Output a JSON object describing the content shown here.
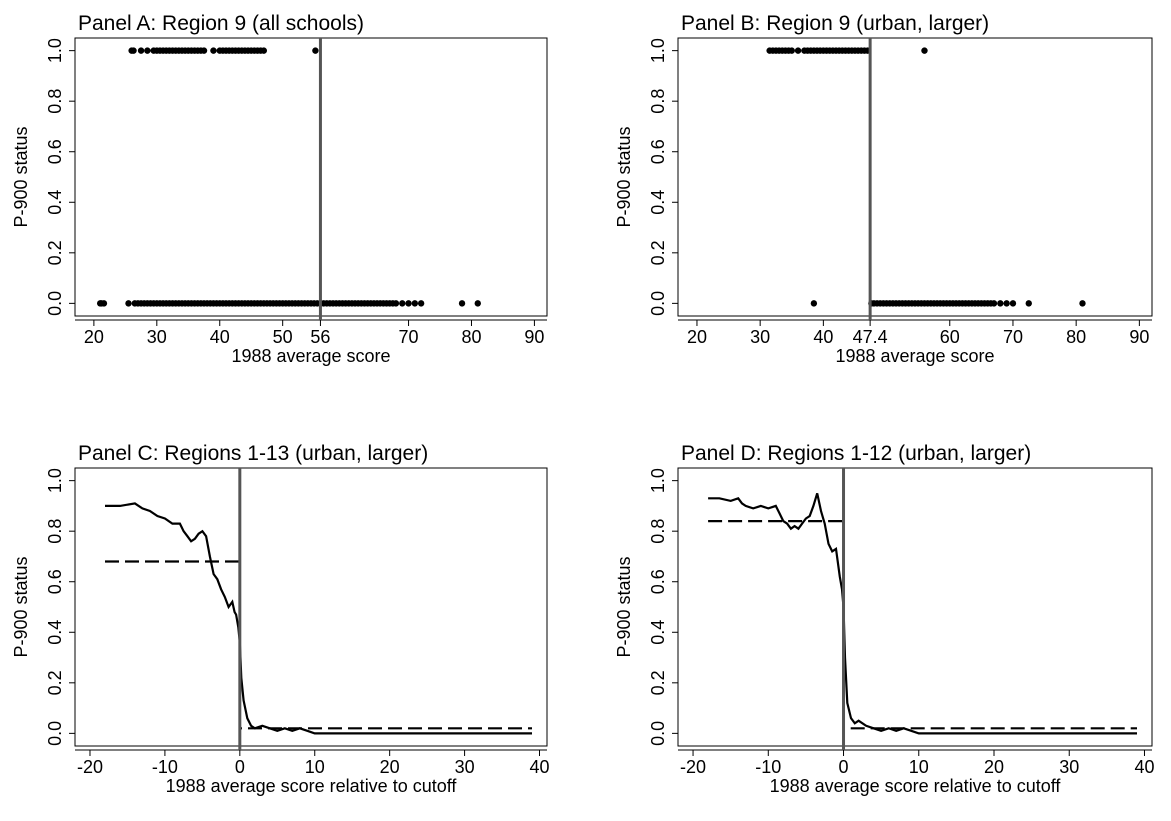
{
  "chart_data": [
    {
      "type": "scatter",
      "title": "Panel A: Region 9 (all schools)",
      "xlabel": "1988 average score",
      "ylabel": "P-900 status",
      "xlim": [
        17,
        92
      ],
      "ylim": [
        -0.05,
        1.05
      ],
      "x_ticks": [
        20,
        30,
        40,
        50,
        56,
        70,
        80,
        90
      ],
      "x_tick_labels": [
        "20",
        "30",
        "40",
        "50",
        "56",
        "70",
        "80",
        "90"
      ],
      "y_ticks": [
        0,
        0.2,
        0.4,
        0.6,
        0.8,
        1
      ],
      "y_tick_labels": [
        "0.0",
        "0.2",
        "0.4",
        "0.6",
        "0.8",
        "1.0"
      ],
      "cutoff": 56,
      "series": [
        {
          "points_y1_x": [
            26,
            26.3,
            27.5,
            28.5,
            29.5,
            30,
            30.5,
            31,
            31.5,
            32,
            32.5,
            33,
            33.5,
            34,
            34.5,
            35,
            35.5,
            36,
            36.5,
            37,
            37.5,
            39,
            40,
            40.5,
            41,
            41.5,
            42,
            42.5,
            43,
            43.5,
            44,
            44.5,
            45,
            45.5,
            46,
            46.5,
            47,
            55.2
          ],
          "points_y0_x": [
            21,
            21.2,
            21.6,
            25.5,
            26.5,
            27,
            27.5,
            28,
            28.5,
            29,
            29.5,
            30,
            30.5,
            31,
            31.5,
            32,
            32.5,
            33,
            33.5,
            34,
            34.5,
            35,
            35.5,
            36,
            36.5,
            37,
            37.5,
            38,
            38.5,
            39,
            39.5,
            40,
            40.5,
            41,
            41.5,
            42,
            42.5,
            43,
            43.5,
            44,
            44.5,
            45,
            45.5,
            46,
            46.5,
            47,
            47.5,
            48,
            48.5,
            49,
            49.5,
            50,
            50.5,
            51,
            51.5,
            52,
            52.5,
            53,
            53.5,
            54,
            54.5,
            55,
            55.5,
            56,
            56.5,
            57,
            57.5,
            58,
            58.5,
            59,
            59.5,
            60,
            60.5,
            61,
            61.5,
            62,
            62.5,
            63,
            63.5,
            64,
            64.5,
            65,
            65.5,
            66,
            66.5,
            67,
            67.5,
            68,
            69,
            70,
            71,
            72,
            78.5,
            81
          ]
        }
      ]
    },
    {
      "type": "scatter",
      "title": "Panel B: Region 9 (urban, larger)",
      "xlabel": "1988 average score",
      "ylabel": "P-900 status",
      "xlim": [
        17,
        92
      ],
      "ylim": [
        -0.05,
        1.05
      ],
      "x_ticks": [
        20,
        30,
        40,
        47.4,
        60,
        70,
        80,
        90
      ],
      "x_tick_labels": [
        "20",
        "30",
        "40",
        "47.4",
        "60",
        "70",
        "80",
        "90"
      ],
      "y_ticks": [
        0,
        0.2,
        0.4,
        0.6,
        0.8,
        1
      ],
      "y_tick_labels": [
        "0.0",
        "0.2",
        "0.4",
        "0.6",
        "0.8",
        "1.0"
      ],
      "cutoff": 47.4,
      "series": [
        {
          "points_y1_x": [
            31.5,
            32,
            32.5,
            33,
            33.5,
            34,
            34.5,
            35,
            36,
            37,
            37.5,
            38,
            38.5,
            39,
            39.5,
            40,
            40.5,
            41,
            41.5,
            42,
            42.5,
            43,
            43.5,
            44,
            44.5,
            45,
            45.5,
            46,
            46.5,
            47,
            56
          ],
          "points_y0_x": [
            38.5,
            47.6,
            48,
            48.5,
            49,
            49.5,
            50,
            50.5,
            51,
            51.5,
            52,
            52.5,
            53,
            53.5,
            54,
            54.5,
            55,
            55.5,
            56,
            56.5,
            57,
            57.5,
            58,
            58.5,
            59,
            59.5,
            60,
            60.5,
            61,
            61.5,
            62,
            62.5,
            63,
            63.5,
            64,
            64.5,
            65,
            65.5,
            66,
            66.5,
            67,
            68,
            69,
            70,
            72.5,
            81
          ]
        }
      ]
    },
    {
      "type": "line",
      "title": "Panel C: Regions 1-13 (urban, larger)",
      "xlabel": "1988 average score relative to cutoff",
      "ylabel": "P-900 status",
      "xlim": [
        -22,
        41
      ],
      "ylim": [
        -0.05,
        1.05
      ],
      "x_ticks": [
        -20,
        -10,
        0,
        10,
        20,
        30,
        40
      ],
      "x_tick_labels": [
        "-20",
        "-10",
        "0",
        "10",
        "20",
        "30",
        "40"
      ],
      "y_ticks": [
        0,
        0.2,
        0.4,
        0.6,
        0.8,
        1
      ],
      "y_tick_labels": [
        "0.0",
        "0.2",
        "0.4",
        "0.6",
        "0.8",
        "1.0"
      ],
      "cutoff": 0,
      "series": [
        {
          "style": "solid",
          "x": [
            -18,
            -16,
            -14,
            -13,
            -12,
            -11,
            -10,
            -9,
            -8,
            -7.5,
            -7,
            -6.5,
            -6,
            -5.5,
            -5,
            -4.5,
            -4,
            -3.5,
            -3,
            -2.5,
            -2,
            -1.5,
            -1,
            -0.7,
            -0.5,
            -0.2,
            0,
            0.2,
            0.5,
            1,
            1.5,
            2,
            3,
            4,
            5,
            6,
            7,
            8,
            9,
            10,
            39
          ],
          "y": [
            0.9,
            0.9,
            0.91,
            0.89,
            0.88,
            0.86,
            0.85,
            0.83,
            0.83,
            0.8,
            0.78,
            0.76,
            0.77,
            0.79,
            0.8,
            0.78,
            0.7,
            0.63,
            0.61,
            0.57,
            0.54,
            0.5,
            0.52,
            0.48,
            0.47,
            0.42,
            0.36,
            0.22,
            0.13,
            0.06,
            0.03,
            0.02,
            0.03,
            0.02,
            0.01,
            0.02,
            0.01,
            0.02,
            0.01,
            0.0,
            0.0
          ]
        },
        {
          "style": "dashed",
          "x": [
            -18,
            0,
            0,
            0,
            39
          ],
          "y": [
            0.68,
            0.68,
            0.0,
            0.02,
            0.02
          ]
        }
      ]
    },
    {
      "type": "line",
      "title": "Panel D: Regions 1-12 (urban, larger)",
      "xlabel": "1988 average score relative to cutoff",
      "ylabel": "P-900 status",
      "xlim": [
        -22,
        41
      ],
      "ylim": [
        -0.05,
        1.05
      ],
      "x_ticks": [
        -20,
        -10,
        0,
        10,
        20,
        30,
        40
      ],
      "x_tick_labels": [
        "-20",
        "-10",
        "0",
        "10",
        "20",
        "30",
        "40"
      ],
      "y_ticks": [
        0,
        0.2,
        0.4,
        0.6,
        0.8,
        1
      ],
      "y_tick_labels": [
        "0.0",
        "0.2",
        "0.4",
        "0.6",
        "0.8",
        "1.0"
      ],
      "cutoff": 0,
      "series": [
        {
          "style": "solid",
          "x": [
            -18,
            -16.5,
            -15,
            -14,
            -13.5,
            -13,
            -12,
            -11,
            -10,
            -9,
            -8.5,
            -8,
            -7.5,
            -7,
            -6.5,
            -6,
            -5.5,
            -5,
            -4.5,
            -4,
            -3.5,
            -3,
            -2.5,
            -2,
            -1.5,
            -1,
            -0.5,
            -0.2,
            0,
            0.2,
            0.5,
            1,
            1.5,
            2,
            3,
            4,
            5,
            6,
            7,
            8,
            9,
            10,
            39
          ],
          "y": [
            0.93,
            0.93,
            0.92,
            0.93,
            0.91,
            0.9,
            0.89,
            0.9,
            0.89,
            0.9,
            0.87,
            0.84,
            0.83,
            0.81,
            0.82,
            0.81,
            0.83,
            0.85,
            0.86,
            0.9,
            0.95,
            0.88,
            0.83,
            0.75,
            0.72,
            0.73,
            0.62,
            0.57,
            0.5,
            0.3,
            0.12,
            0.06,
            0.04,
            0.05,
            0.03,
            0.02,
            0.01,
            0.02,
            0.01,
            0.02,
            0.01,
            0.0,
            0.0
          ]
        },
        {
          "style": "dashed",
          "x": [
            -18,
            0,
            0,
            0,
            39
          ],
          "y": [
            0.84,
            0.84,
            0.0,
            0.02,
            0.02
          ]
        }
      ]
    }
  ]
}
